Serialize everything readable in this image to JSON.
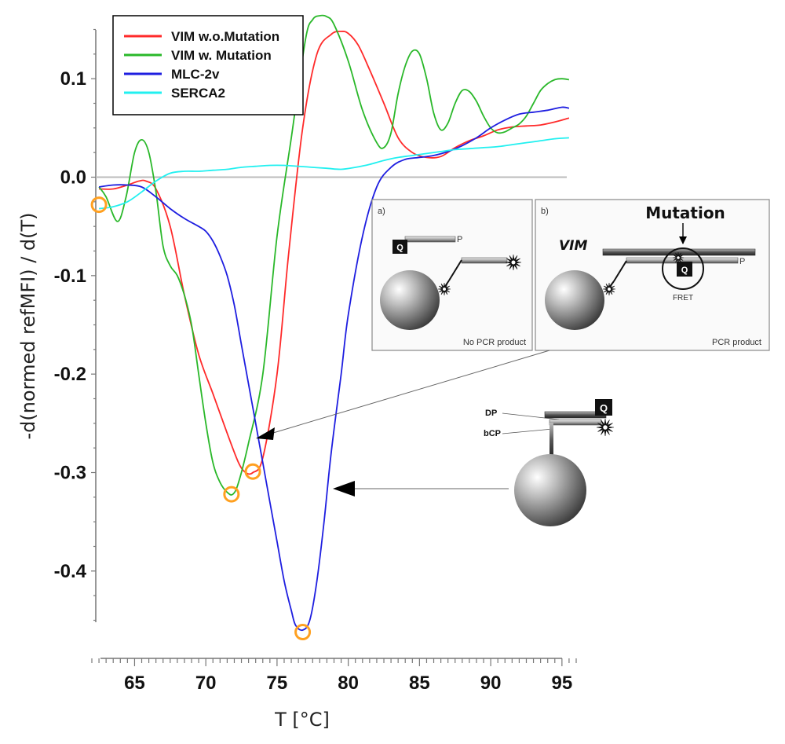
{
  "chart_data": {
    "type": "line",
    "title": "",
    "xlabel": "T [°C]",
    "ylabel": "-d(normed refMFI) / d(T)",
    "xlim": [
      62,
      96
    ],
    "ylim": [
      -0.45,
      0.15
    ],
    "xticks": [
      "65",
      "70",
      "75",
      "80",
      "85",
      "90",
      "95"
    ],
    "yticks": [
      "0.1",
      "0.0",
      "-0.1",
      "-0.2",
      "-0.3",
      "-0.4"
    ],
    "grid": false,
    "legend_position": "top-left",
    "zero_line": 0.0,
    "series": [
      {
        "name": "VIM w.o.Mutation",
        "color": "#ff2a2a",
        "x": [
          62.5,
          63.5,
          64.5,
          65.3,
          65.8,
          66.5,
          67.5,
          68.5,
          69.5,
          70.5,
          71.5,
          72.3,
          72.8,
          73.3,
          74,
          75,
          75.8,
          76.8,
          77.8,
          78.8,
          79.5,
          80,
          80.7,
          81.5,
          82.5,
          83.5,
          84.5,
          85.5,
          86.5,
          87.5,
          88.5,
          89.5,
          90.5,
          91.5,
          92.5,
          93.5,
          94.5,
          95.5
        ],
        "y": [
          -0.012,
          -0.012,
          -0.008,
          -0.004,
          -0.004,
          -0.012,
          -0.05,
          -0.12,
          -0.18,
          -0.22,
          -0.26,
          -0.29,
          -0.3,
          -0.3,
          -0.285,
          -0.2,
          -0.08,
          0.05,
          0.125,
          0.145,
          0.148,
          0.146,
          0.134,
          0.109,
          0.075,
          0.04,
          0.025,
          0.02,
          0.021,
          0.03,
          0.037,
          0.042,
          0.048,
          0.051,
          0.052,
          0.053,
          0.056,
          0.06
        ]
      },
      {
        "name": "VIM w. Mutation",
        "color": "#2ab82a",
        "x": [
          62.5,
          63,
          63.8,
          64.4,
          65,
          65.5,
          66,
          66.5,
          67,
          67.5,
          68,
          68.5,
          69,
          69.5,
          70,
          70.5,
          71,
          71.5,
          71.9,
          72.3,
          73,
          74,
          75,
          76,
          77,
          77.5,
          78,
          78.5,
          79,
          80,
          81,
          82,
          82.5,
          83,
          83.5,
          84,
          84.5,
          85,
          85.5,
          86,
          86.5,
          87,
          87.5,
          88,
          88.5,
          89,
          89.5,
          90,
          90.5,
          91,
          91.5,
          92,
          92.5,
          93,
          93.5,
          94,
          94.5,
          95,
          95.5
        ],
        "y": [
          -0.01,
          -0.02,
          -0.045,
          -0.02,
          0.025,
          0.038,
          0.025,
          -0.015,
          -0.07,
          -0.09,
          -0.1,
          -0.12,
          -0.15,
          -0.2,
          -0.25,
          -0.29,
          -0.31,
          -0.32,
          -0.322,
          -0.31,
          -0.27,
          -0.2,
          -0.06,
          0.04,
          0.14,
          0.16,
          0.164,
          0.163,
          0.155,
          0.118,
          0.068,
          0.035,
          0.03,
          0.045,
          0.085,
          0.113,
          0.128,
          0.125,
          0.1,
          0.065,
          0.048,
          0.055,
          0.075,
          0.088,
          0.087,
          0.077,
          0.062,
          0.05,
          0.045,
          0.046,
          0.05,
          0.054,
          0.062,
          0.075,
          0.088,
          0.095,
          0.099,
          0.1,
          0.099
        ]
      },
      {
        "name": "MLC-2v",
        "color": "#1e1ee0",
        "x": [
          62.5,
          63.5,
          64.5,
          65.5,
          66.5,
          67.5,
          68.5,
          69.5,
          70,
          70.5,
          71,
          71.5,
          72,
          72.5,
          73,
          73.5,
          74,
          74.5,
          75,
          75.5,
          76,
          76.3,
          76.8,
          77.3,
          77.8,
          78.3,
          78.8,
          79.5,
          80,
          81,
          82,
          83,
          84,
          85,
          86,
          87,
          88,
          89,
          90,
          91,
          92,
          93,
          94,
          95,
          95.5
        ],
        "y": [
          -0.01,
          -0.008,
          -0.008,
          -0.01,
          -0.02,
          -0.032,
          -0.042,
          -0.05,
          -0.055,
          -0.065,
          -0.08,
          -0.1,
          -0.13,
          -0.17,
          -0.21,
          -0.25,
          -0.29,
          -0.33,
          -0.37,
          -0.41,
          -0.44,
          -0.455,
          -0.46,
          -0.45,
          -0.41,
          -0.35,
          -0.28,
          -0.2,
          -0.14,
          -0.06,
          -0.01,
          0.01,
          0.018,
          0.02,
          0.022,
          0.026,
          0.032,
          0.04,
          0.05,
          0.058,
          0.064,
          0.066,
          0.068,
          0.071,
          0.07
        ]
      },
      {
        "name": "SERCA2",
        "color": "#22f0f0",
        "x": [
          62.5,
          63.5,
          64.5,
          65.5,
          66.5,
          67.5,
          68.5,
          69.5,
          70.5,
          71.5,
          72.5,
          73.5,
          74.5,
          75.5,
          76.5,
          77.5,
          78.5,
          79.5,
          80.5,
          81.5,
          82.5,
          83.5,
          84.5,
          85.5,
          86.5,
          87.5,
          88.5,
          89.5,
          90.5,
          91.5,
          92.5,
          93.5,
          94.5,
          95.5
        ],
        "y": [
          -0.032,
          -0.03,
          -0.025,
          -0.015,
          -0.004,
          0.004,
          0.006,
          0.006,
          0.007,
          0.008,
          0.01,
          0.011,
          0.012,
          0.012,
          0.011,
          0.01,
          0.009,
          0.008,
          0.01,
          0.013,
          0.017,
          0.02,
          0.022,
          0.024,
          0.026,
          0.028,
          0.029,
          0.03,
          0.031,
          0.033,
          0.035,
          0.037,
          0.039,
          0.04
        ]
      }
    ],
    "markers": [
      {
        "x": 62.5,
        "y": -0.028
      },
      {
        "x": 71.8,
        "y": -0.322
      },
      {
        "x": 73.3,
        "y": -0.299
      },
      {
        "x": 76.8,
        "y": -0.462
      }
    ],
    "marker_color": "#ffa020"
  },
  "insets": {
    "panel_a": {
      "label": "a)",
      "quencher": "Q",
      "probe": "P",
      "caption": "No PCR product"
    },
    "panel_b": {
      "label": "b)",
      "title": "Mutation",
      "gene": "VIM",
      "quencher": "Q",
      "probe": "P",
      "fret": "FRET",
      "caption": "PCR product"
    },
    "probe_diagram": {
      "quencher": "Q",
      "dp_label": "DP",
      "bcp_label": "bCP"
    }
  }
}
